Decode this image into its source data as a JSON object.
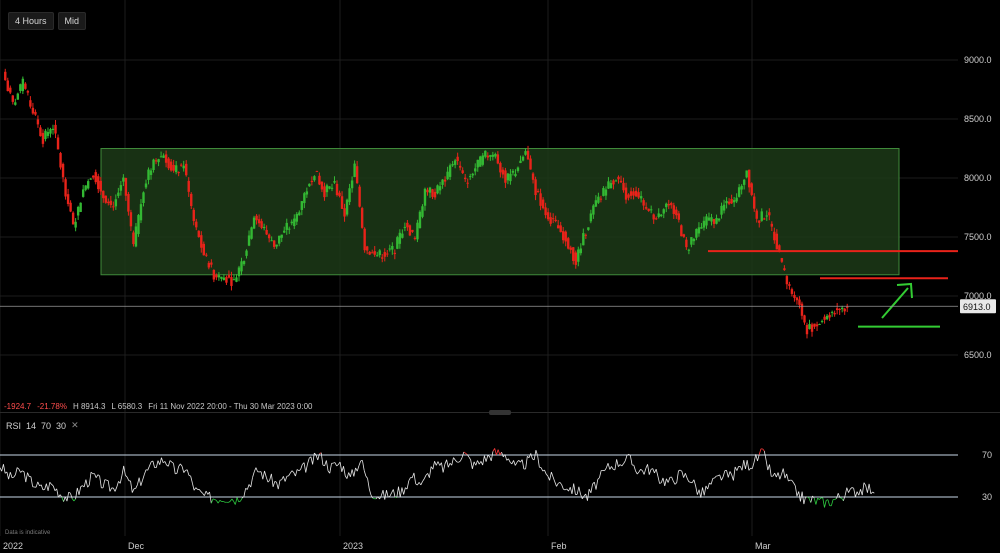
{
  "toolbar": {
    "interval": "4 Hours",
    "price_type": "Mid"
  },
  "stats": {
    "change": "-1924.7",
    "change_pct": "-21.78%",
    "high": "H 8914.3",
    "low": "L 6580.3",
    "range": "Fri 11 Nov 2022 20:00 - Thu 30 Mar 2023 0:00"
  },
  "rsi_legend": {
    "name": "RSI",
    "p1": "14",
    "p2": "70",
    "p3": "30",
    "close": "✕"
  },
  "note": "Data is indicative",
  "price_badge": "6913.0",
  "chart_data": [
    {
      "type": "line",
      "subtype": "candlestick",
      "title": "",
      "ylim": [
        6250,
        9300
      ],
      "y_ticks": [
        6500.0,
        7000.0,
        7500.0,
        8000.0,
        8500.0,
        9000.0
      ],
      "y_tick_labels": [
        "6500.0",
        "7000.0",
        "7500.0",
        "8000.0",
        "8500.0",
        "9000.0"
      ],
      "x_tick_labels": [
        "2022",
        "Dec",
        "2023",
        "Feb",
        "Mar"
      ],
      "current_price": 6913.0,
      "high": 8914.3,
      "low": 6580.3,
      "series": [
        {
          "values": [
            8900,
            8620,
            8800,
            8560,
            8330,
            8450,
            7990,
            7580,
            7900,
            8050,
            7850,
            7760,
            8000,
            7420,
            7920,
            8150,
            8200,
            8050,
            8120,
            7630,
            7350,
            7180,
            7160,
            7120,
            7340,
            7680,
            7560,
            7420,
            7560,
            7630,
            7860,
            8060,
            7880,
            7950,
            7690,
            8100,
            7420,
            7340,
            7360,
            7400,
            7620,
            7480,
            7900,
            7870,
            7990,
            8180,
            7960,
            8090,
            8190,
            8200,
            7980,
            8060,
            8230,
            7890,
            7710,
            7600,
            7490,
            7290,
            7560,
            7790,
            7910,
            8010,
            7860,
            7880,
            7740,
            7670,
            7780,
            7700,
            7390,
            7530,
            7640,
            7640,
            7800,
            7840,
            8070,
            7640,
            7710,
            7430,
            7100,
            6970,
            6720,
            6760,
            6840,
            6890,
            6913
          ]
        }
      ],
      "annotations": [
        {
          "type": "rectangle",
          "label": "range",
          "y1": 7180,
          "y2": 8250,
          "color": "#3f8a3a"
        },
        {
          "type": "hline",
          "y": 7380,
          "color": "#e8231a"
        },
        {
          "type": "hline",
          "y": 7150,
          "color": "#e8231a"
        },
        {
          "type": "hline",
          "y": 6740,
          "color": "#33cc33"
        },
        {
          "type": "arrow",
          "direction": "up-right",
          "color": "#33cc33"
        }
      ],
      "colors": {
        "up": "#33b833",
        "down": "#e8231a",
        "range_fill": "#1c3a18"
      },
      "grid": true
    },
    {
      "type": "line",
      "title": "",
      "name": "RSI",
      "ylim": [
        20,
        80
      ],
      "y_ticks": [
        30,
        70
      ],
      "y_tick_labels": [
        "30",
        "70"
      ],
      "series": [
        {
          "values": [
            60,
            48,
            55,
            45,
            38,
            42,
            32,
            28,
            40,
            50,
            42,
            38,
            54,
            34,
            52,
            62,
            66,
            55,
            58,
            36,
            30,
            29,
            30,
            28,
            40,
            56,
            48,
            42,
            50,
            53,
            62,
            70,
            58,
            62,
            48,
            66,
            35,
            31,
            33,
            36,
            50,
            42,
            60,
            58,
            64,
            72,
            60,
            66,
            72,
            72,
            58,
            62,
            70,
            52,
            44,
            40,
            36,
            30,
            45,
            58,
            63,
            66,
            55,
            57,
            48,
            44,
            52,
            48,
            32,
            42,
            50,
            50,
            60,
            62,
            72,
            48,
            52,
            38,
            28,
            27,
            24,
            28,
            33,
            36,
            38
          ]
        }
      ],
      "colors": {
        "line": "#e6e6e6",
        "overbought": "#ff3b3b",
        "oversold": "#2ecc40",
        "bands": "#c8d8e8"
      }
    }
  ]
}
